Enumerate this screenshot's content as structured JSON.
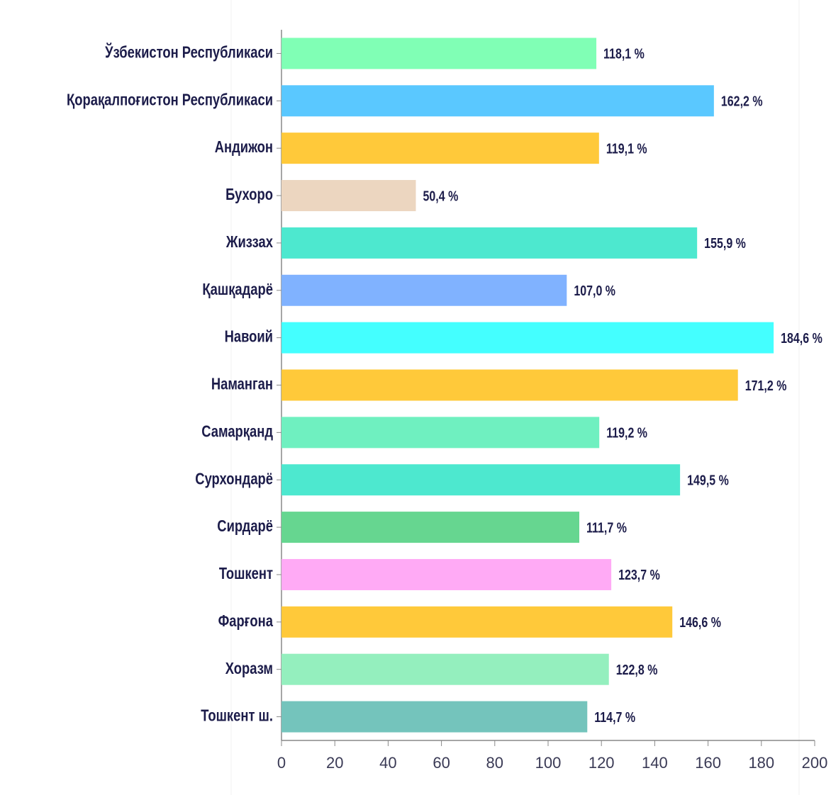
{
  "chart_data": {
    "type": "bar",
    "orientation": "horizontal",
    "categories": [
      "Ўзбекистон Республикаси",
      "Қорақалпоғистон Республикаси",
      "Андижон",
      "Бухоро",
      "Жиззах",
      "Қашқадарё",
      "Навоий",
      "Наманган",
      "Самарқанд",
      "Сурхондарё",
      "Сирдарё",
      "Тошкент",
      "Фарғона",
      "Хоразм",
      "Тошкент ш."
    ],
    "values": [
      118.1,
      162.2,
      119.1,
      50.4,
      155.9,
      107.0,
      184.6,
      171.2,
      119.2,
      149.5,
      111.7,
      123.7,
      146.6,
      122.8,
      114.7
    ],
    "value_labels": [
      "118,1 %",
      "162,2 %",
      "119,1 %",
      "50,4 %",
      "155,9 %",
      "107,0 %",
      "184,6 %",
      "171,2 %",
      "119,2 %",
      "149,5 %",
      "111,7 %",
      "123,7 %",
      "146,6 %",
      "122,8 %",
      "114,7 %"
    ],
    "colors": [
      "#80ffb5",
      "#5ac8ff",
      "#ffc93a",
      "#ecd6c0",
      "#4de8cf",
      "#80b2ff",
      "#44ffff",
      "#ffc93a",
      "#6ff0c0",
      "#4de8cf",
      "#66d690",
      "#ffaaf5",
      "#ffc93a",
      "#94efbe",
      "#74c4bc"
    ],
    "xlim": [
      0,
      200
    ],
    "xticks": [
      0,
      20,
      40,
      60,
      80,
      100,
      120,
      140,
      160,
      180,
      200
    ]
  }
}
